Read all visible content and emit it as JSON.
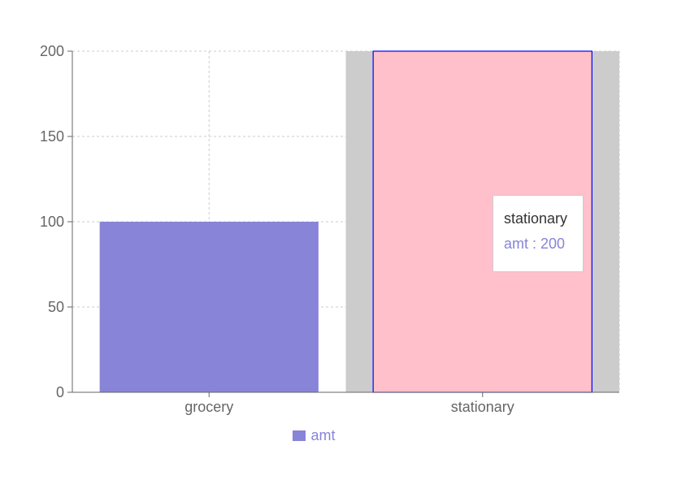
{
  "chart_data": {
    "type": "bar",
    "categories": [
      "grocery",
      "stationary"
    ],
    "series": [
      {
        "name": "amt",
        "values": [
          100,
          200
        ]
      }
    ],
    "ylim": [
      0,
      200
    ],
    "yticks": [
      0,
      50,
      100,
      150,
      200
    ],
    "grid": true,
    "legend_position": "bottom",
    "active_category": "stationary"
  },
  "colors": {
    "bar": "#8884d8",
    "active_bar_fill": "#ffc0cb",
    "active_bar_stroke": "#0000ff",
    "cursor": "#cccccc",
    "grid": "#cccccc",
    "axis": "#666666"
  },
  "tooltip": {
    "title": "stationary",
    "item": "amt : 200"
  },
  "legend": {
    "items": [
      {
        "label": "amt"
      }
    ]
  }
}
